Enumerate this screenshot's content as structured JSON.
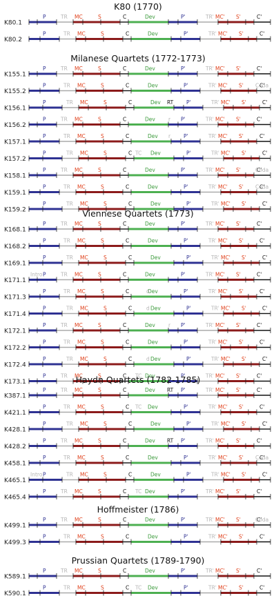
{
  "colors": {
    "P": "#2e3192",
    "S": "#8b1a1a",
    "Dev": "#4caf50",
    "black": "#111111",
    "gray": "#aaaaaa",
    "red_label": "#e0401a",
    "gray_label": "#b5b5b5",
    "blue_label": "#2e3192",
    "green_label": "#3b9a3b"
  },
  "sections": [
    {
      "title": "K80 (1770)",
      "rows": [
        {
          "label": "K80.1",
          "type": "A"
        },
        {
          "label": "K80.2",
          "type": "A"
        }
      ]
    },
    {
      "title": "Milanese Quartets (1772-1773)",
      "rows": [
        {
          "label": "K155.1",
          "type": "A"
        },
        {
          "label": "K155.2",
          "type": "coda"
        },
        {
          "label": "K156.1",
          "type": "rt"
        },
        {
          "label": "K156.2",
          "type": "r"
        },
        {
          "label": "K157.1",
          "type": "r"
        },
        {
          "label": "K157.2",
          "type": "tc"
        },
        {
          "label": "K158.1",
          "type": "coda"
        },
        {
          "label": "K159.1",
          "type": "coda"
        },
        {
          "label": "K159.2",
          "type": "A"
        }
      ]
    },
    {
      "title": "Viennese Quartets (1773)",
      "rows": [
        {
          "label": "K168.1",
          "type": "A"
        },
        {
          "label": "K168.2",
          "type": "A"
        },
        {
          "label": "K169.1",
          "type": "A"
        },
        {
          "label": "K171.1",
          "type": "intro"
        },
        {
          "label": "K171.3",
          "type": "d"
        },
        {
          "label": "K171.4",
          "type": "d"
        },
        {
          "label": "K172.1",
          "type": "r"
        },
        {
          "label": "K172.2",
          "type": "A"
        },
        {
          "label": "K172.4",
          "type": "d"
        },
        {
          "label": "K173.1",
          "type": "tc"
        }
      ]
    },
    {
      "title": "Haydn Quartets (1782-1785)",
      "rows": [
        {
          "label": "K387.1",
          "type": "rt"
        },
        {
          "label": "K421.1",
          "type": "tc"
        },
        {
          "label": "K428.1",
          "type": "A"
        },
        {
          "label": "K428.2",
          "type": "rt"
        },
        {
          "label": "K458.1",
          "type": "coda"
        },
        {
          "label": "K465.1",
          "type": "intro"
        },
        {
          "label": "K465.4",
          "type": "tc"
        }
      ]
    },
    {
      "title": "Hoffmeister (1786)",
      "rows": [
        {
          "label": "K499.1",
          "type": "coda"
        },
        {
          "label": "K499.3",
          "type": "A"
        }
      ]
    },
    {
      "title": "Prussian Quartets (1789-1790)",
      "rows": [
        {
          "label": "K589.1",
          "type": "A"
        },
        {
          "label": "K590.1",
          "type": "tc"
        }
      ]
    }
  ]
}
